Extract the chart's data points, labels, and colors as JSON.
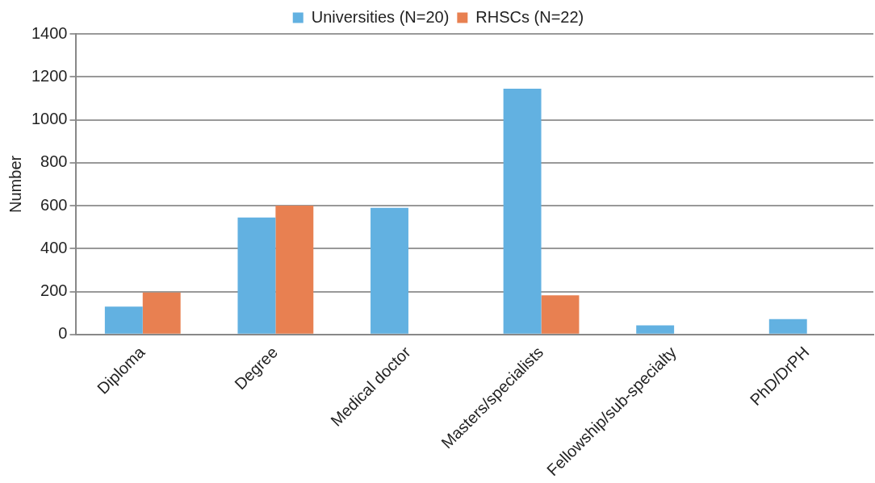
{
  "chart_data": {
    "type": "bar",
    "ylabel": "Number",
    "categories": [
      "Diploma",
      "Degree",
      "Medical doctor",
      "Masters/specialists",
      "Fellowship/sub-specialty",
      "PhD/DrPH"
    ],
    "series": [
      {
        "name": "Universities (N=20)",
        "color": "#62b1e1",
        "values": [
          130,
          545,
          590,
          1145,
          42,
          71
        ]
      },
      {
        "name": "RHSCs (N=22)",
        "color": "#e88051",
        "values": [
          195,
          600,
          null,
          182,
          null,
          0
        ]
      }
    ],
    "ylim": [
      0,
      1400
    ],
    "yticks": [
      0,
      200,
      400,
      600,
      800,
      1000,
      1200,
      1400
    ],
    "grid": "y",
    "legend": "top"
  }
}
